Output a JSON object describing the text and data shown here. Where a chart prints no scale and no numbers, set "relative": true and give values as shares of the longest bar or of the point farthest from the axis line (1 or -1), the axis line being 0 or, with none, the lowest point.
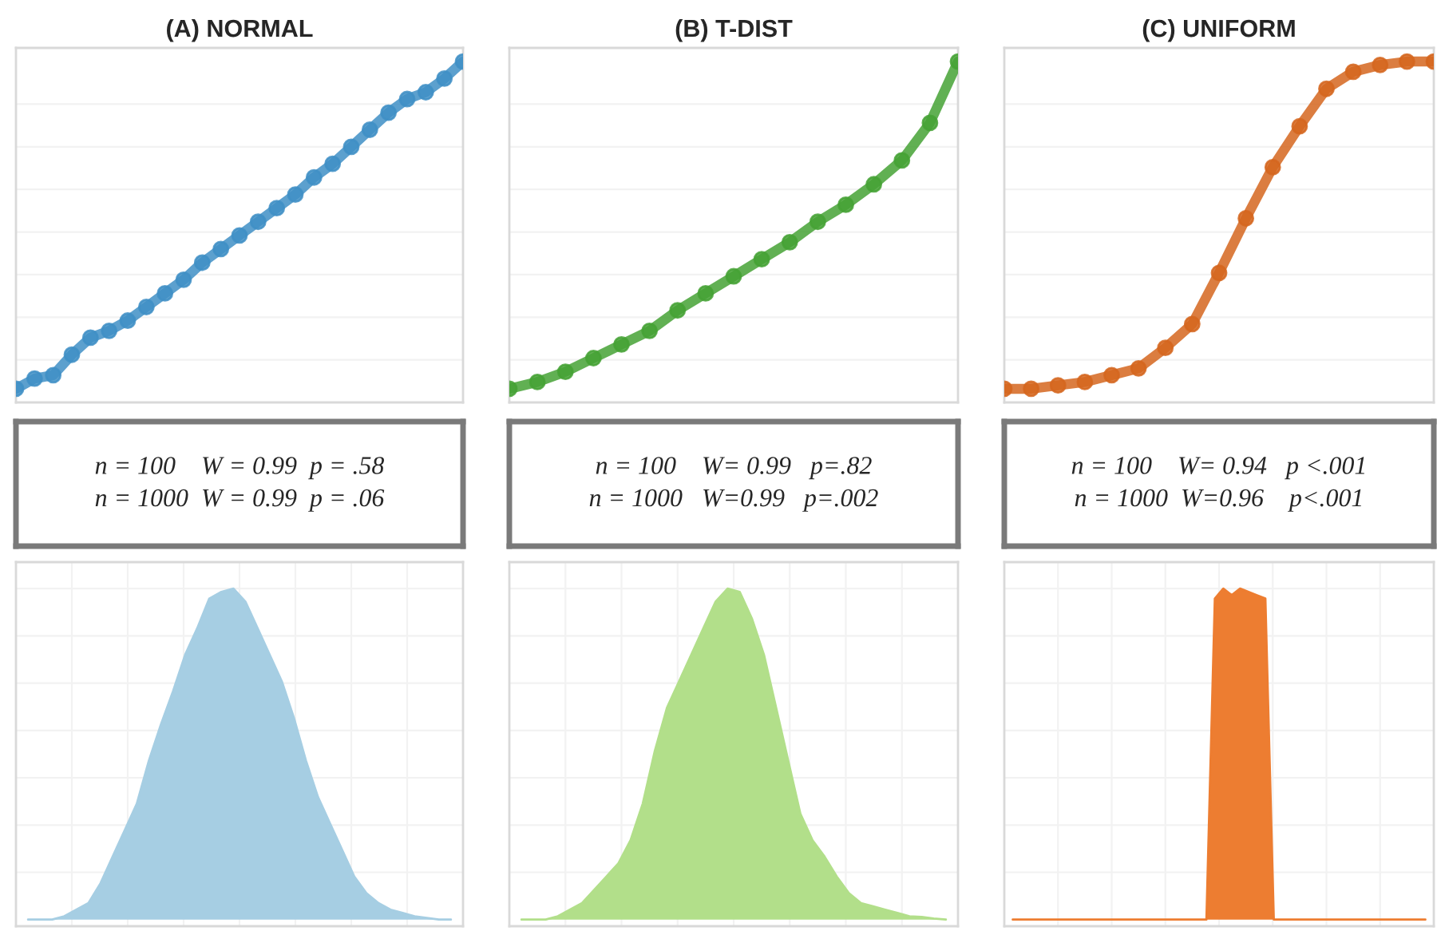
{
  "chart_data": [
    {
      "type": "line",
      "title": "(A) NORMAL",
      "relative": true,
      "grid": "y",
      "tick_labels": false,
      "marker": "circle",
      "categories": [
        null,
        null,
        null,
        null,
        null,
        null,
        null,
        null,
        null,
        null,
        null,
        null,
        null,
        null,
        null,
        null,
        null,
        null,
        null,
        null,
        null,
        null,
        null,
        null,
        null
      ],
      "series": [
        {
          "color": "#3f8fc6",
          "values": [
            0.04,
            0.07,
            0.08,
            0.14,
            0.19,
            0.21,
            0.24,
            0.28,
            0.32,
            0.36,
            0.41,
            0.45,
            0.49,
            0.53,
            0.57,
            0.61,
            0.66,
            0.7,
            0.75,
            0.8,
            0.85,
            0.89,
            0.91,
            0.95,
            1
          ]
        }
      ]
    },
    {
      "type": "line",
      "title": "(B) T-DIST",
      "relative": true,
      "grid": "y",
      "tick_labels": false,
      "marker": "circle",
      "categories": [
        null,
        null,
        null,
        null,
        null,
        null,
        null,
        null,
        null,
        null,
        null,
        null,
        null,
        null,
        null,
        null,
        null
      ],
      "series": [
        {
          "color": "#45a235",
          "values": [
            0.04,
            0.06,
            0.09,
            0.13,
            0.17,
            0.21,
            0.27,
            0.32,
            0.37,
            0.42,
            0.47,
            0.53,
            0.58,
            0.64,
            0.71,
            0.82,
            1
          ]
        }
      ]
    },
    {
      "type": "line",
      "title": "(C) UNIFORM",
      "relative": true,
      "grid": "y",
      "tick_labels": false,
      "marker": "circle",
      "categories": [
        null,
        null,
        null,
        null,
        null,
        null,
        null,
        null,
        null,
        null,
        null,
        null,
        null,
        null,
        null,
        null,
        null
      ],
      "series": [
        {
          "color": "#d5661f",
          "values": [
            0.04,
            0.04,
            0.05,
            0.06,
            0.08,
            0.1,
            0.16,
            0.23,
            0.38,
            0.54,
            0.69,
            0.81,
            0.92,
            0.97,
            0.99,
            1,
            1
          ]
        }
      ]
    },
    {
      "type": "other",
      "annotations": [
        "n = 100    W = 0.99  p = .58",
        "n = 1000  W = 0.99  p = .06"
      ]
    },
    {
      "type": "other",
      "annotations": [
        "n = 100    W= 0.99   p=.82",
        "n = 1000   W=0.99   p=.002"
      ]
    },
    {
      "type": "other",
      "annotations": [
        "n = 100    W= 0.94   p <.001",
        "n = 1000  W=0.96    p<.001"
      ]
    },
    {
      "type": "area",
      "relative": true,
      "grid": true,
      "tick_labels": false,
      "categories": [
        null,
        null,
        null,
        null,
        null,
        null,
        null,
        null,
        null,
        null,
        null,
        null,
        null,
        null,
        null,
        null,
        null,
        null,
        null,
        null,
        null,
        null,
        null,
        null,
        null,
        null,
        null,
        null,
        null,
        null,
        null,
        null,
        null,
        null,
        null,
        null
      ],
      "series": [
        {
          "color": "#a6cee3",
          "values": [
            0,
            0,
            0,
            0.01,
            0.03,
            0.05,
            0.11,
            0.19,
            0.27,
            0.35,
            0.48,
            0.59,
            0.69,
            0.8,
            0.88,
            0.97,
            0.99,
            1,
            0.96,
            0.88,
            0.8,
            0.72,
            0.61,
            0.48,
            0.37,
            0.29,
            0.21,
            0.13,
            0.08,
            0.05,
            0.03,
            0.02,
            0.01,
            0.005,
            0,
            0
          ]
        }
      ]
    },
    {
      "type": "area",
      "relative": true,
      "grid": true,
      "tick_labels": false,
      "categories": [
        null,
        null,
        null,
        null,
        null,
        null,
        null,
        null,
        null,
        null,
        null,
        null,
        null,
        null,
        null,
        null,
        null,
        null,
        null,
        null,
        null,
        null,
        null,
        null,
        null,
        null,
        null,
        null,
        null,
        null,
        null,
        null,
        null,
        null,
        null,
        null
      ],
      "series": [
        {
          "color": "#b2df8a",
          "values": [
            0,
            0,
            0,
            0.01,
            0.03,
            0.05,
            0.09,
            0.13,
            0.17,
            0.24,
            0.35,
            0.51,
            0.64,
            0.72,
            0.8,
            0.88,
            0.96,
            1,
            0.99,
            0.91,
            0.8,
            0.64,
            0.48,
            0.32,
            0.24,
            0.19,
            0.13,
            0.08,
            0.05,
            0.04,
            0.03,
            0.02,
            0.01,
            0.008,
            0.003,
            0
          ]
        }
      ]
    },
    {
      "type": "area",
      "relative": true,
      "grid": true,
      "tick_labels": false,
      "categories": [
        null,
        null,
        null,
        null,
        null,
        null,
        null,
        null,
        null,
        null,
        null,
        null,
        null,
        null,
        null,
        null,
        null,
        null,
        null,
        null,
        null,
        null,
        null,
        null,
        null,
        null,
        null,
        null,
        null,
        null,
        null,
        null,
        null,
        null,
        null,
        null,
        null,
        null,
        null,
        null,
        null,
        null,
        null,
        null,
        null,
        null,
        null,
        null,
        null,
        null
      ],
      "series": [
        {
          "color": "#ed7d31",
          "values": [
            0,
            0,
            0,
            0,
            0,
            0,
            0,
            0,
            0,
            0,
            0,
            0,
            0,
            0,
            0,
            0,
            0,
            0,
            0,
            0,
            0,
            0,
            0,
            0,
            0.97,
            1,
            0.98,
            1,
            0.99,
            0.98,
            0.97,
            0,
            0,
            0,
            0,
            0,
            0,
            0,
            0,
            0,
            0,
            0,
            0,
            0,
            0,
            0,
            0,
            0,
            0,
            0
          ]
        }
      ]
    }
  ]
}
